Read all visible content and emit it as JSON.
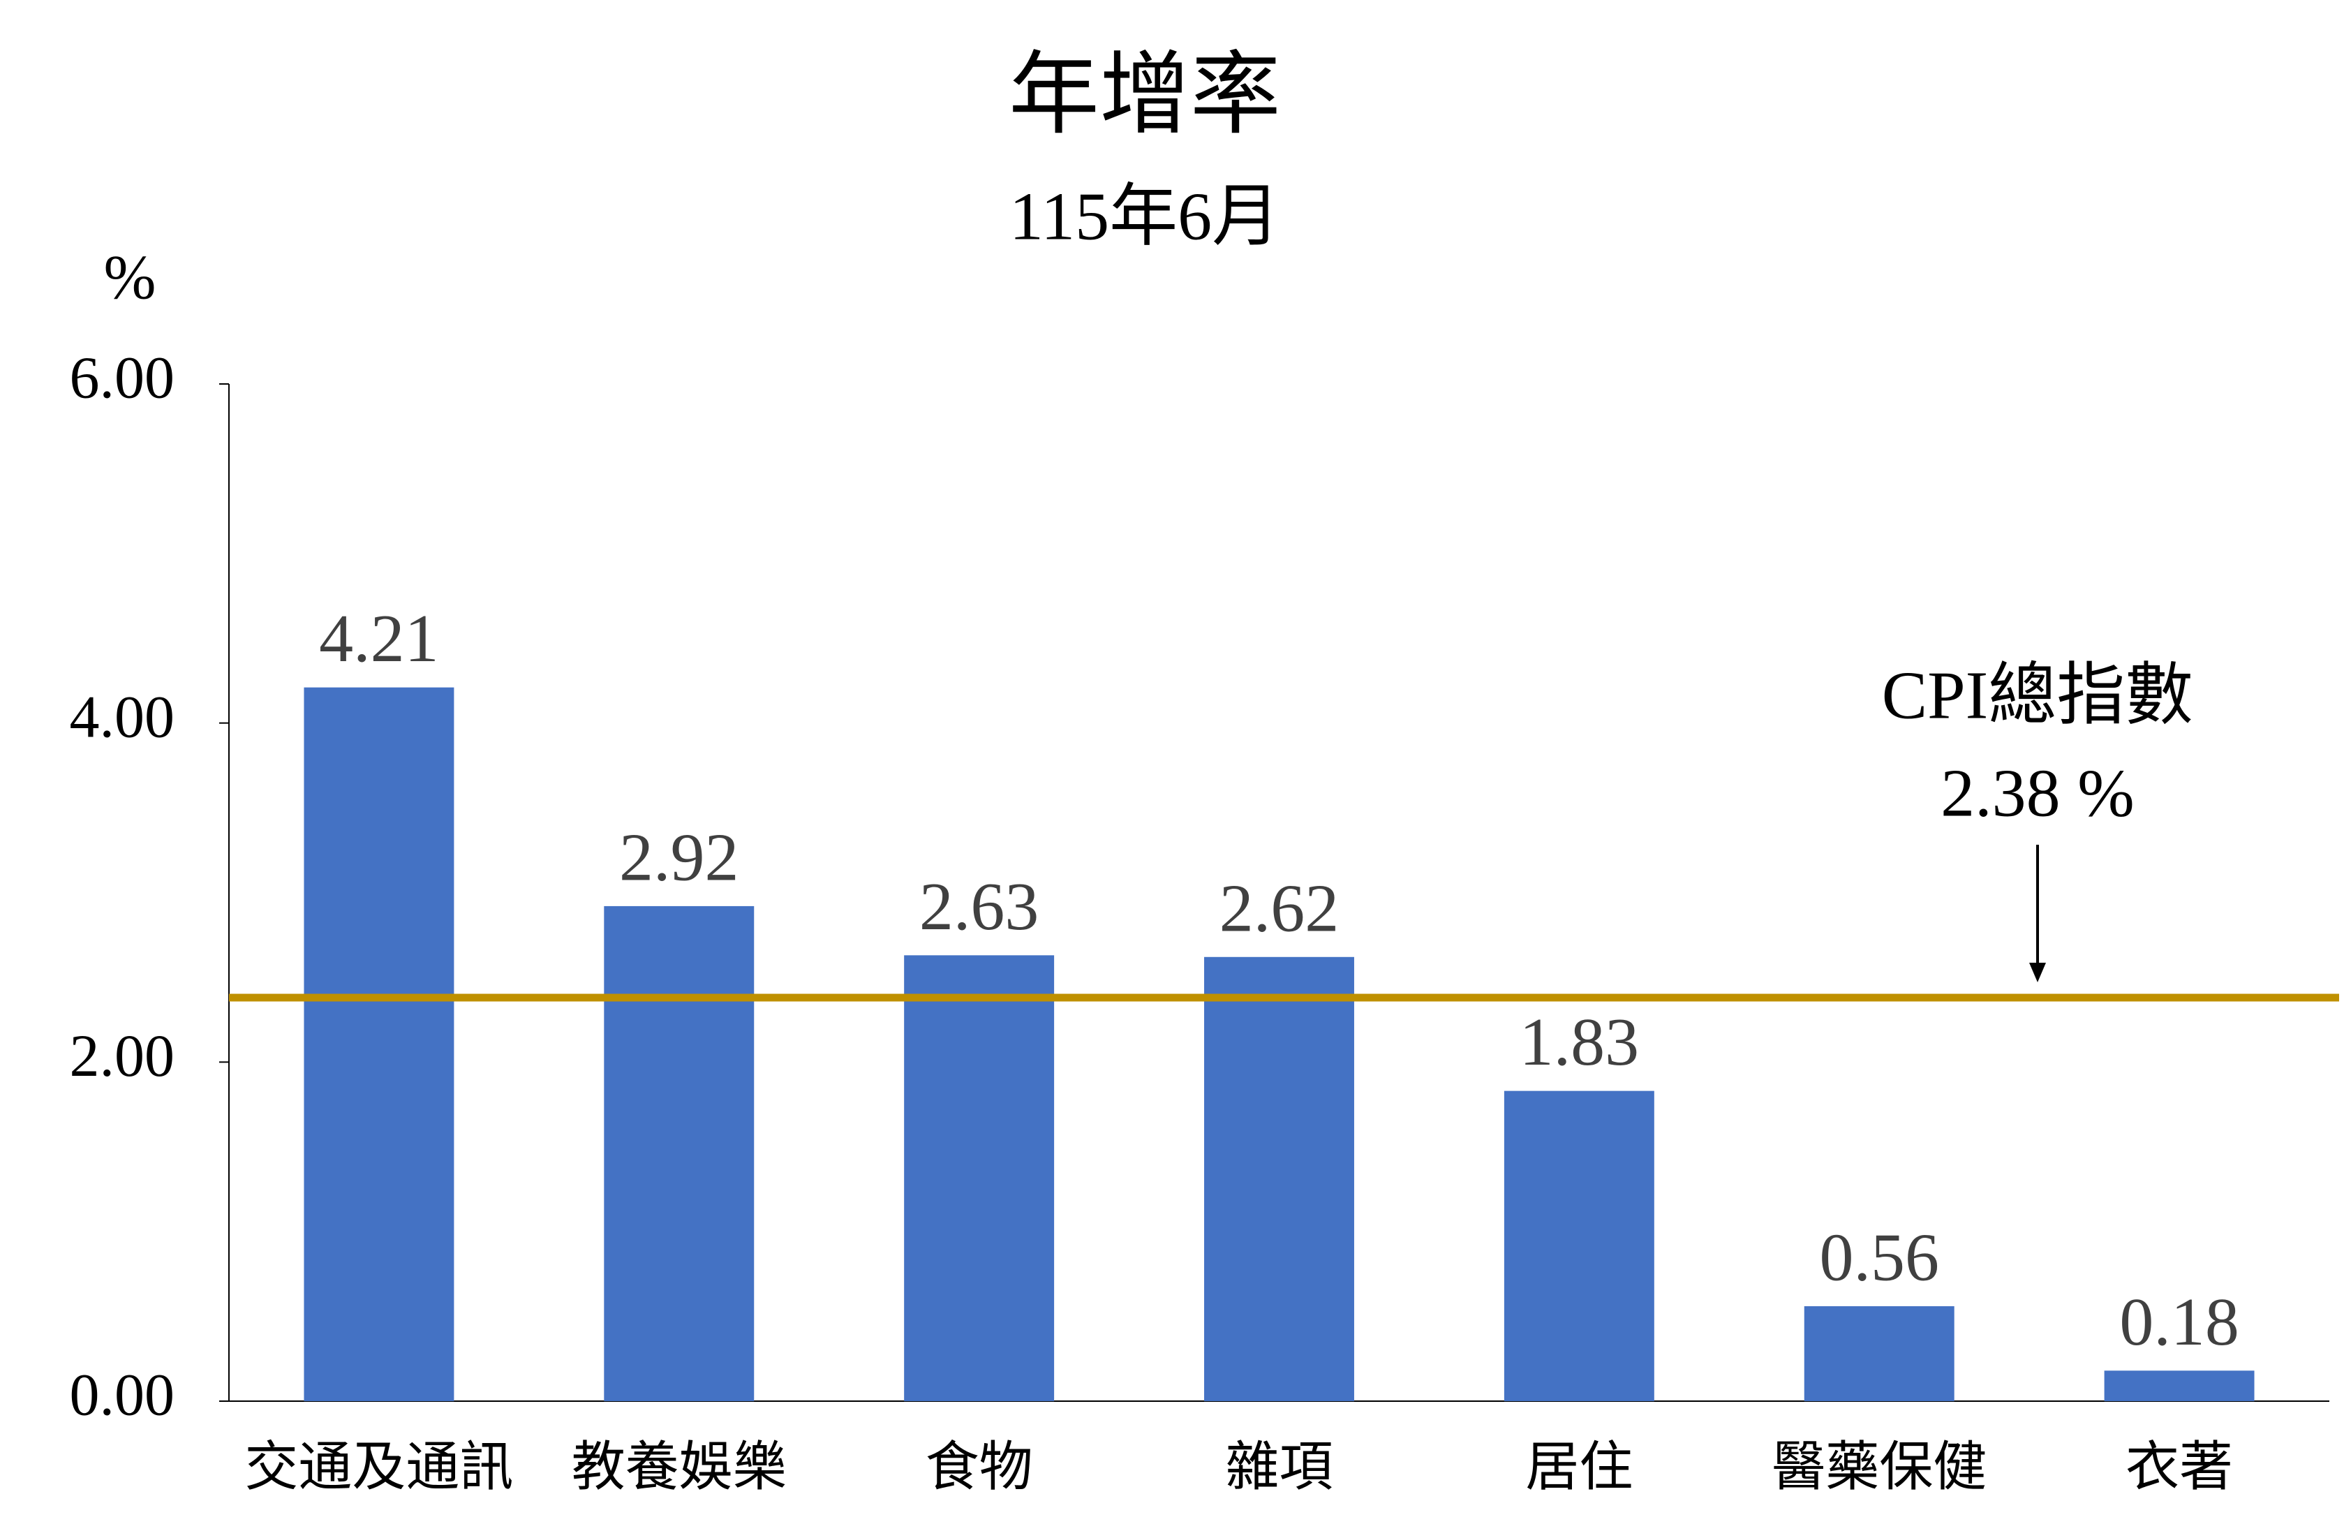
{
  "chart_data": {
    "type": "bar",
    "title": "年增率",
    "subtitle": "115年6月",
    "y_unit": "%",
    "categories": [
      "交通及通訊",
      "教養娛樂",
      "食物",
      "雜項",
      "居住",
      "醫藥保健",
      "衣著"
    ],
    "values": [
      4.21,
      2.92,
      2.63,
      2.62,
      1.83,
      0.56,
      0.18
    ],
    "color": "#4472c4",
    "ylim": [
      0,
      6
    ],
    "yticks": [
      {
        "value": 0,
        "label": "0.00"
      },
      {
        "value": 2,
        "label": "2.00"
      },
      {
        "value": 4,
        "label": "4.00"
      },
      {
        "value": 6,
        "label": "6.00"
      }
    ],
    "reference_line": {
      "value": 2.38,
      "label": "CPI總指數",
      "value_label": "2.38 %",
      "color": "#bf9000"
    }
  }
}
